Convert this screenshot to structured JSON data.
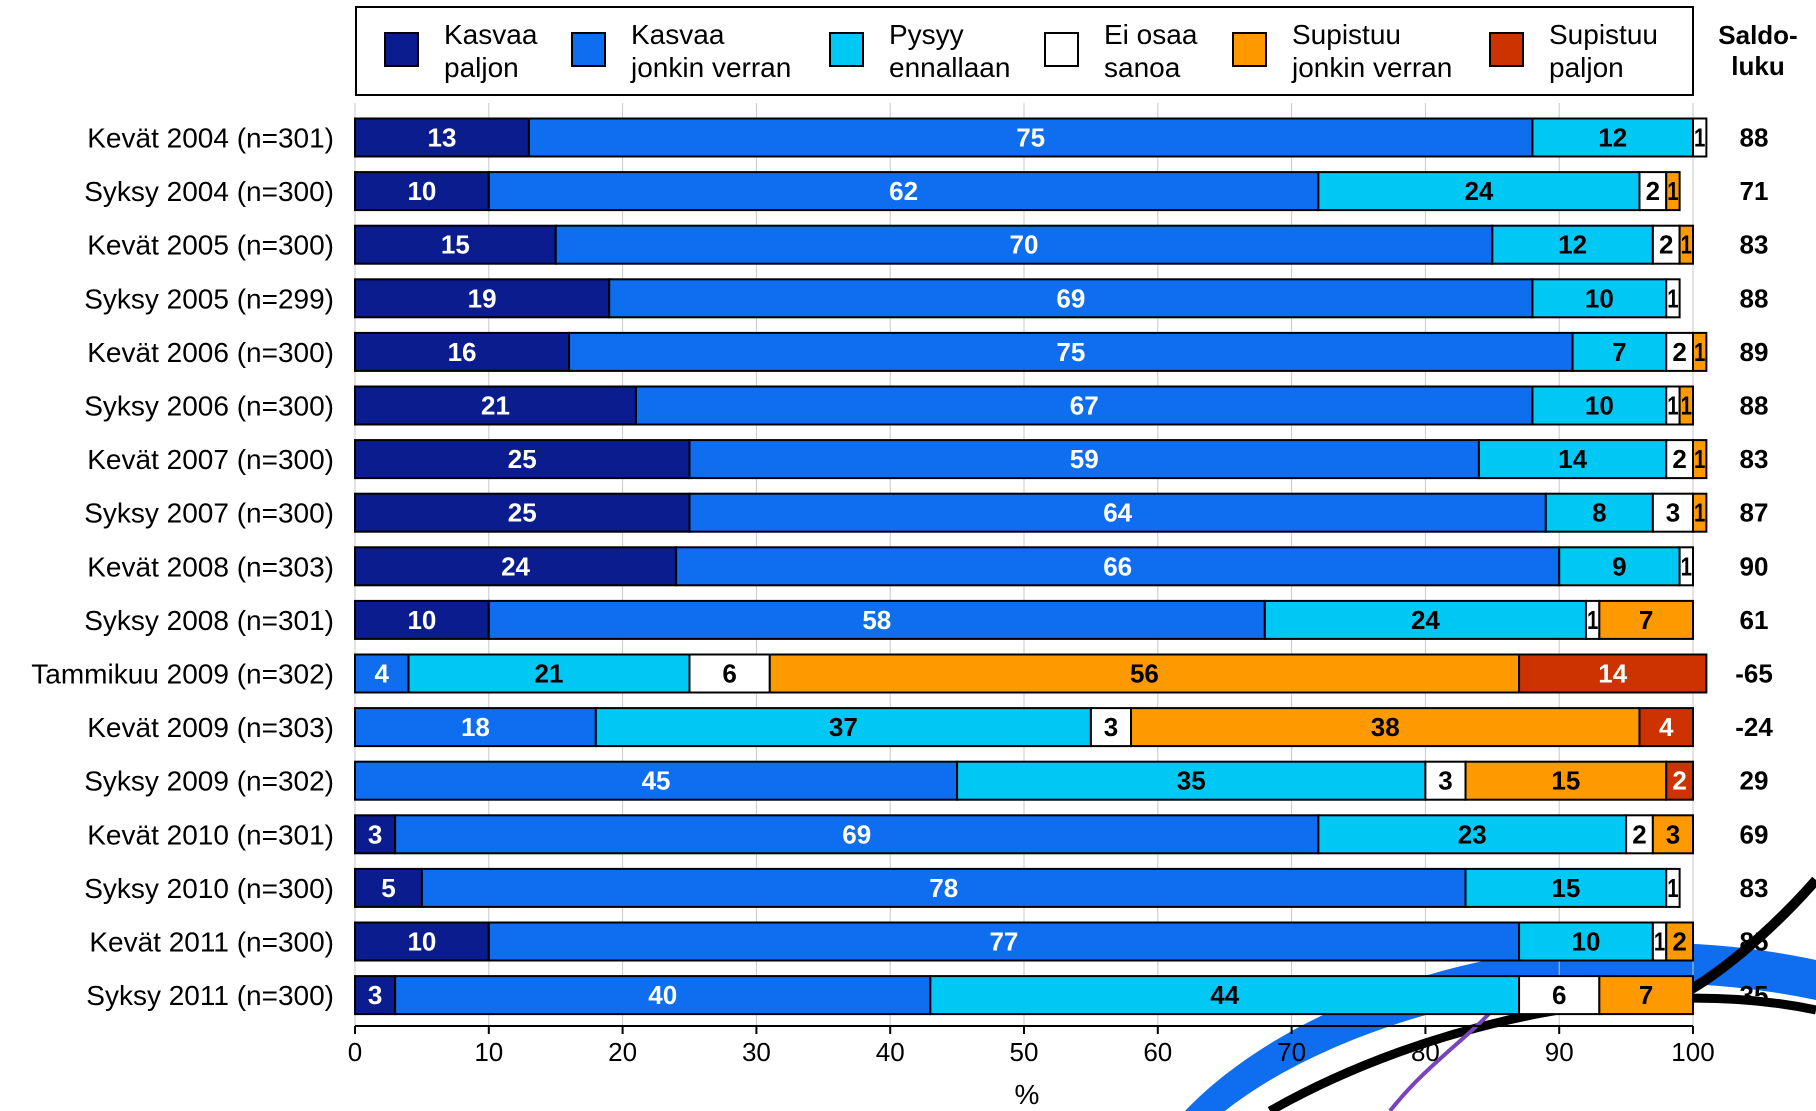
{
  "chart_data": {
    "type": "bar",
    "orientation": "horizontal-stacked-100",
    "xlabel": "%",
    "xlim": [
      0,
      100
    ],
    "xticks": [
      0,
      10,
      20,
      30,
      40,
      50,
      60,
      70,
      80,
      90,
      100
    ],
    "grid": true,
    "legend_position": "top",
    "saldo_header": [
      "Saldo-",
      "luku"
    ],
    "categories": [
      "Kevät 2004 (n=301)",
      "Syksy 2004 (n=300)",
      "Kevät 2005 (n=300)",
      "Syksy 2005 (n=299)",
      "Kevät 2006 (n=300)",
      "Syksy 2006 (n=300)",
      "Kevät 2007 (n=300)",
      "Syksy 2007 (n=300)",
      "Kevät 2008 (n=303)",
      "Syksy 2008 (n=301)",
      "Tammikuu 2009 (n=302)",
      "Kevät 2009 (n=303)",
      "Syksy 2009 (n=302)",
      "Kevät 2010 (n=301)",
      "Syksy 2010 (n=300)",
      "Kevät 2011 (n=300)",
      "Syksy 2011 (n=300)"
    ],
    "series": [
      {
        "name": "Kasvaa paljon",
        "legend_lines": [
          "Kasvaa",
          "paljon"
        ],
        "color": "#0a1c8e",
        "text_color": "#ffffff",
        "values": [
          13,
          10,
          15,
          19,
          16,
          21,
          25,
          25,
          24,
          10,
          0,
          0,
          0,
          3,
          5,
          10,
          3
        ]
      },
      {
        "name": "Kasvaa jonkin verran",
        "legend_lines": [
          "Kasvaa",
          "jonkin verran"
        ],
        "color": "#0f6df0",
        "text_color": "#ffffff",
        "values": [
          75,
          62,
          70,
          69,
          75,
          67,
          59,
          64,
          66,
          58,
          4,
          18,
          45,
          69,
          78,
          77,
          40
        ]
      },
      {
        "name": "Pysyy ennallaan",
        "legend_lines": [
          "Pysyy",
          "ennallaan"
        ],
        "color": "#00c8f5",
        "text_color": "#000000",
        "values": [
          12,
          24,
          12,
          10,
          7,
          10,
          14,
          8,
          9,
          24,
          21,
          37,
          35,
          23,
          15,
          10,
          44
        ]
      },
      {
        "name": "Ei osaa sanoa",
        "legend_lines": [
          "Ei osaa",
          "sanoa"
        ],
        "color": "#ffffff",
        "text_color": "#000000",
        "values": [
          1,
          2,
          2,
          1,
          2,
          1,
          2,
          3,
          1,
          1,
          6,
          3,
          3,
          2,
          1,
          1,
          6
        ]
      },
      {
        "name": "Supistuu jonkin verran",
        "legend_lines": [
          "Supistuu",
          "jonkin verran"
        ],
        "color": "#ff9900",
        "text_color": "#000000",
        "values": [
          0,
          1,
          1,
          0,
          1,
          1,
          1,
          1,
          0,
          7,
          56,
          38,
          15,
          3,
          0,
          2,
          7
        ]
      },
      {
        "name": "Supistuu paljon",
        "legend_lines": [
          "Supistuu",
          "paljon"
        ],
        "color": "#cc3300",
        "text_color": "#ffffff",
        "values": [
          0,
          0,
          0,
          0,
          0,
          0,
          0,
          0,
          0,
          0,
          14,
          4,
          2,
          0,
          0,
          0,
          0
        ]
      }
    ],
    "saldo": [
      88,
      71,
      83,
      88,
      89,
      88,
      83,
      87,
      90,
      61,
      -65,
      -24,
      29,
      69,
      83,
      85,
      35
    ]
  }
}
